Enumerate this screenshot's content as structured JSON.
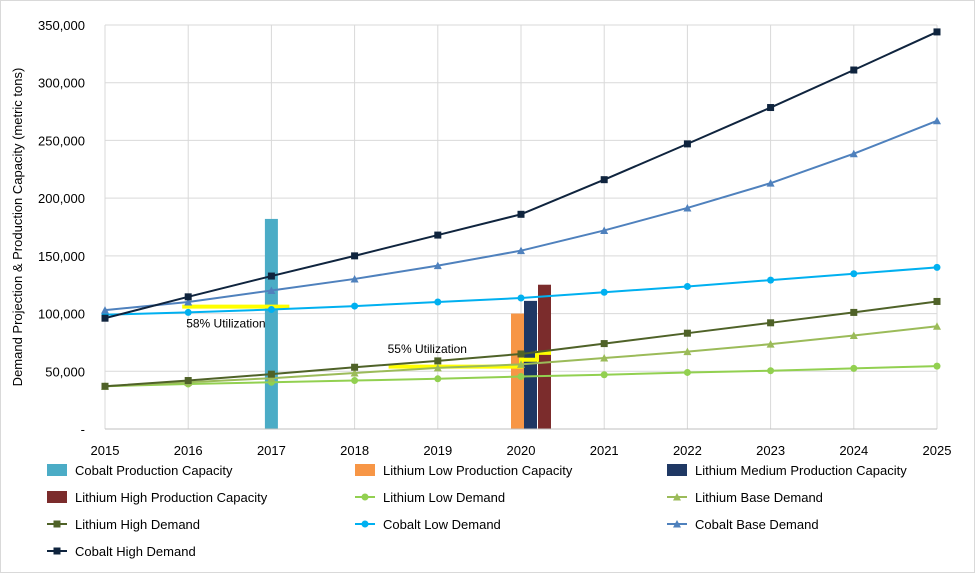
{
  "chart_data": {
    "type": "bar+line",
    "title": "",
    "xlabel": "",
    "ylabel": "Demand Projection & Production Capacity (metric tons)",
    "ylim": [
      0,
      350000
    ],
    "yticks": [
      0,
      50000,
      100000,
      150000,
      200000,
      250000,
      300000,
      350000
    ],
    "ytick_labels": [
      "-",
      "50,000",
      "100,000",
      "150,000",
      "200,000",
      "250,000",
      "300,000",
      "350,000"
    ],
    "x": [
      "2015",
      "2016",
      "2017",
      "2018",
      "2019",
      "2020",
      "2021",
      "2022",
      "2023",
      "2024",
      "2025"
    ],
    "bars": [
      {
        "name": "Cobalt Production Capacity",
        "year": "2017",
        "value": 182000,
        "color": "#4bacc6"
      },
      {
        "name": "Lithium Low Production Capacity",
        "year": "2020",
        "value": 100000,
        "color": "#f79646"
      },
      {
        "name": "Lithium Medium Production Capacity",
        "year": "2020",
        "value": 111000,
        "color": "#1f3864"
      },
      {
        "name": "Lithium High Production Capacity",
        "year": "2020",
        "value": 125000,
        "color": "#7b2c2c"
      }
    ],
    "series": [
      {
        "name": "Lithium Low Demand",
        "color": "#92d050",
        "marker": "circle",
        "values": [
          37000,
          39000,
          40500,
          42000,
          43500,
          45500,
          47000,
          49000,
          50500,
          52500,
          54500
        ]
      },
      {
        "name": "Lithium Base Demand",
        "color": "#9bbb59",
        "marker": "triangle",
        "values": [
          37000,
          40500,
          44000,
          48500,
          53000,
          56000,
          61500,
          67000,
          73500,
          81000,
          89000
        ]
      },
      {
        "name": "Lithium High Demand",
        "color": "#4f6228",
        "marker": "square",
        "values": [
          37000,
          42000,
          47500,
          53500,
          59000,
          65000,
          74000,
          83000,
          92000,
          101000,
          110500
        ]
      },
      {
        "name": "Cobalt Low Demand",
        "color": "#00b0f0",
        "marker": "circle",
        "values": [
          99000,
          101000,
          103500,
          106500,
          110000,
          113500,
          118500,
          123500,
          129000,
          134500,
          140000
        ]
      },
      {
        "name": "Cobalt Base Demand",
        "color": "#4f81bd",
        "marker": "triangle",
        "values": [
          103000,
          110000,
          120000,
          130000,
          141500,
          154500,
          172000,
          191500,
          213000,
          238500,
          267000
        ]
      },
      {
        "name": "Cobalt High Demand",
        "color": "#0f243e",
        "marker": "square",
        "values": [
          96000,
          114500,
          132500,
          150000,
          168000,
          186000,
          216000,
          247000,
          278500,
          311000,
          344000
        ]
      }
    ],
    "annotations": [
      {
        "text": "58% Utilization",
        "color": "#ffff00"
      },
      {
        "text": "55% Utilization",
        "color": "#ffff00"
      }
    ],
    "legend_entries": [
      "Cobalt Production Capacity",
      "Lithium Low Production Capacity",
      "Lithium Medium Production Capacity",
      "Lithium High Production Capacity",
      "Lithium Low Demand",
      "Lithium Base Demand",
      "Lithium High Demand",
      "Cobalt Low Demand",
      "Cobalt Base Demand",
      "Cobalt High Demand"
    ],
    "legend_position": "bottom",
    "grid": true
  }
}
